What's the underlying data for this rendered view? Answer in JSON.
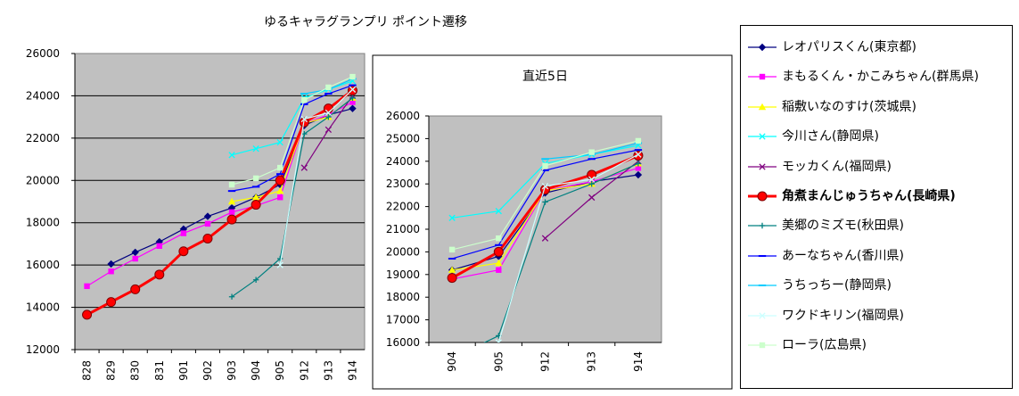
{
  "title": "ゆるキャラグランプリ ポイント遷移",
  "chart_data": [
    {
      "type": "line",
      "title": "",
      "categories": [
        "828",
        "829",
        "830",
        "831",
        "901",
        "902",
        "903",
        "904",
        "905",
        "912",
        "913",
        "914"
      ],
      "ylim": [
        12000,
        26000
      ],
      "yticks": [
        "12000",
        "14000",
        "16000",
        "18000",
        "20000",
        "22000",
        "24000",
        "26000"
      ],
      "grid": true,
      "legend_position": "right",
      "series": [
        {
          "name": "レオパリスくん(東京都)",
          "color": "#000080",
          "marker": "diamond",
          "values": [
            null,
            16050,
            16600,
            17100,
            17700,
            18300,
            18700,
            19200,
            19800,
            22600,
            23100,
            23400
          ]
        },
        {
          "name": "まもるくん・かこみちゃん(群馬県)",
          "color": "#ff00ff",
          "marker": "square",
          "values": [
            15000,
            15700,
            16300,
            16900,
            17500,
            17950,
            18500,
            18800,
            19200,
            22700,
            23100,
            23700
          ]
        },
        {
          "name": "稲敷いなのすけ(茨城県)",
          "color": "#ffff00",
          "marker": "triangle",
          "values": [
            null,
            null,
            null,
            null,
            null,
            null,
            19000,
            19200,
            19500,
            22700,
            23000,
            23900
          ]
        },
        {
          "name": "今川さん(静岡県)",
          "color": "#00ffff",
          "marker": "x",
          "values": [
            null,
            null,
            null,
            null,
            null,
            null,
            21200,
            21500,
            21800,
            23900,
            24300,
            24700
          ]
        },
        {
          "name": "モッカくん(福岡県)",
          "color": "#800080",
          "marker": "x",
          "values": [
            null,
            null,
            null,
            null,
            null,
            null,
            null,
            null,
            null,
            20600,
            22400,
            24000
          ]
        },
        {
          "name": "角煮まんじゅうちゃん(長崎県)",
          "color": "#ff0000",
          "marker": "circle",
          "bold": true,
          "values": [
            13650,
            14250,
            14850,
            15550,
            16650,
            17250,
            18150,
            18850,
            20000,
            22750,
            23400,
            24250
          ]
        },
        {
          "name": "美郷のミズモ(秋田県)",
          "color": "#008080",
          "marker": "plus",
          "values": [
            null,
            null,
            null,
            null,
            null,
            null,
            14500,
            15300,
            16300,
            22200,
            23000,
            23900
          ]
        },
        {
          "name": "あーなちゃん(香川県)",
          "color": "#0000ff",
          "marker": "dash",
          "values": [
            null,
            null,
            null,
            null,
            null,
            null,
            19500,
            19700,
            20300,
            23600,
            24100,
            24500
          ]
        },
        {
          "name": "うちっちー(静岡県)",
          "color": "#00ccff",
          "marker": "dash",
          "values": [
            null,
            null,
            null,
            null,
            null,
            null,
            null,
            null,
            null,
            24100,
            24300,
            24800
          ]
        },
        {
          "name": "ワクドキリン(福岡県)",
          "color": "#ccffff",
          "marker": "x",
          "values": [
            null,
            null,
            null,
            null,
            null,
            null,
            null,
            null,
            16000,
            22900,
            23200,
            24300
          ]
        },
        {
          "name": "ローラ(広島県)",
          "color": "#ccffcc",
          "marker": "square",
          "values": [
            null,
            null,
            null,
            null,
            null,
            null,
            19800,
            20100,
            20600,
            23800,
            24400,
            24900
          ]
        }
      ]
    },
    {
      "type": "line",
      "title": "直近5日",
      "categories": [
        "904",
        "905",
        "912",
        "913",
        "914"
      ],
      "ylim": [
        16000,
        26000
      ],
      "yticks": [
        "16000",
        "17000",
        "18000",
        "19000",
        "20000",
        "21000",
        "22000",
        "23000",
        "24000",
        "25000",
        "26000"
      ],
      "grid": false,
      "series": [
        {
          "name": "レオパリスくん(東京都)",
          "values": [
            19200,
            19800,
            22600,
            23100,
            23400
          ]
        },
        {
          "name": "まもるくん・かこみちゃん(群馬県)",
          "values": [
            18800,
            19200,
            22700,
            23100,
            23700
          ]
        },
        {
          "name": "稲敷いなのすけ(茨城県)",
          "values": [
            19200,
            19500,
            22700,
            23000,
            23900
          ]
        },
        {
          "name": "今川さん(静岡県)",
          "values": [
            21500,
            21800,
            23900,
            24300,
            24700
          ]
        },
        {
          "name": "モッカくん(福岡県)",
          "values": [
            null,
            null,
            20600,
            22400,
            24000
          ]
        },
        {
          "name": "角煮まんじゅうちゃん(長崎県)",
          "values": [
            18850,
            20000,
            22750,
            23400,
            24250
          ]
        },
        {
          "name": "美郷のミズモ(秋田県)",
          "values": [
            15300,
            16300,
            22200,
            23000,
            23900
          ]
        },
        {
          "name": "あーなちゃん(香川県)",
          "values": [
            19700,
            20300,
            23600,
            24100,
            24500
          ]
        },
        {
          "name": "うちっちー(静岡県)",
          "values": [
            null,
            null,
            24100,
            24300,
            24800
          ]
        },
        {
          "name": "ワクドキリン(福岡県)",
          "values": [
            null,
            16000,
            22900,
            23200,
            24300
          ]
        },
        {
          "name": "ローラ(広島県)",
          "values": [
            20100,
            20600,
            23800,
            24400,
            24900
          ]
        }
      ]
    }
  ]
}
